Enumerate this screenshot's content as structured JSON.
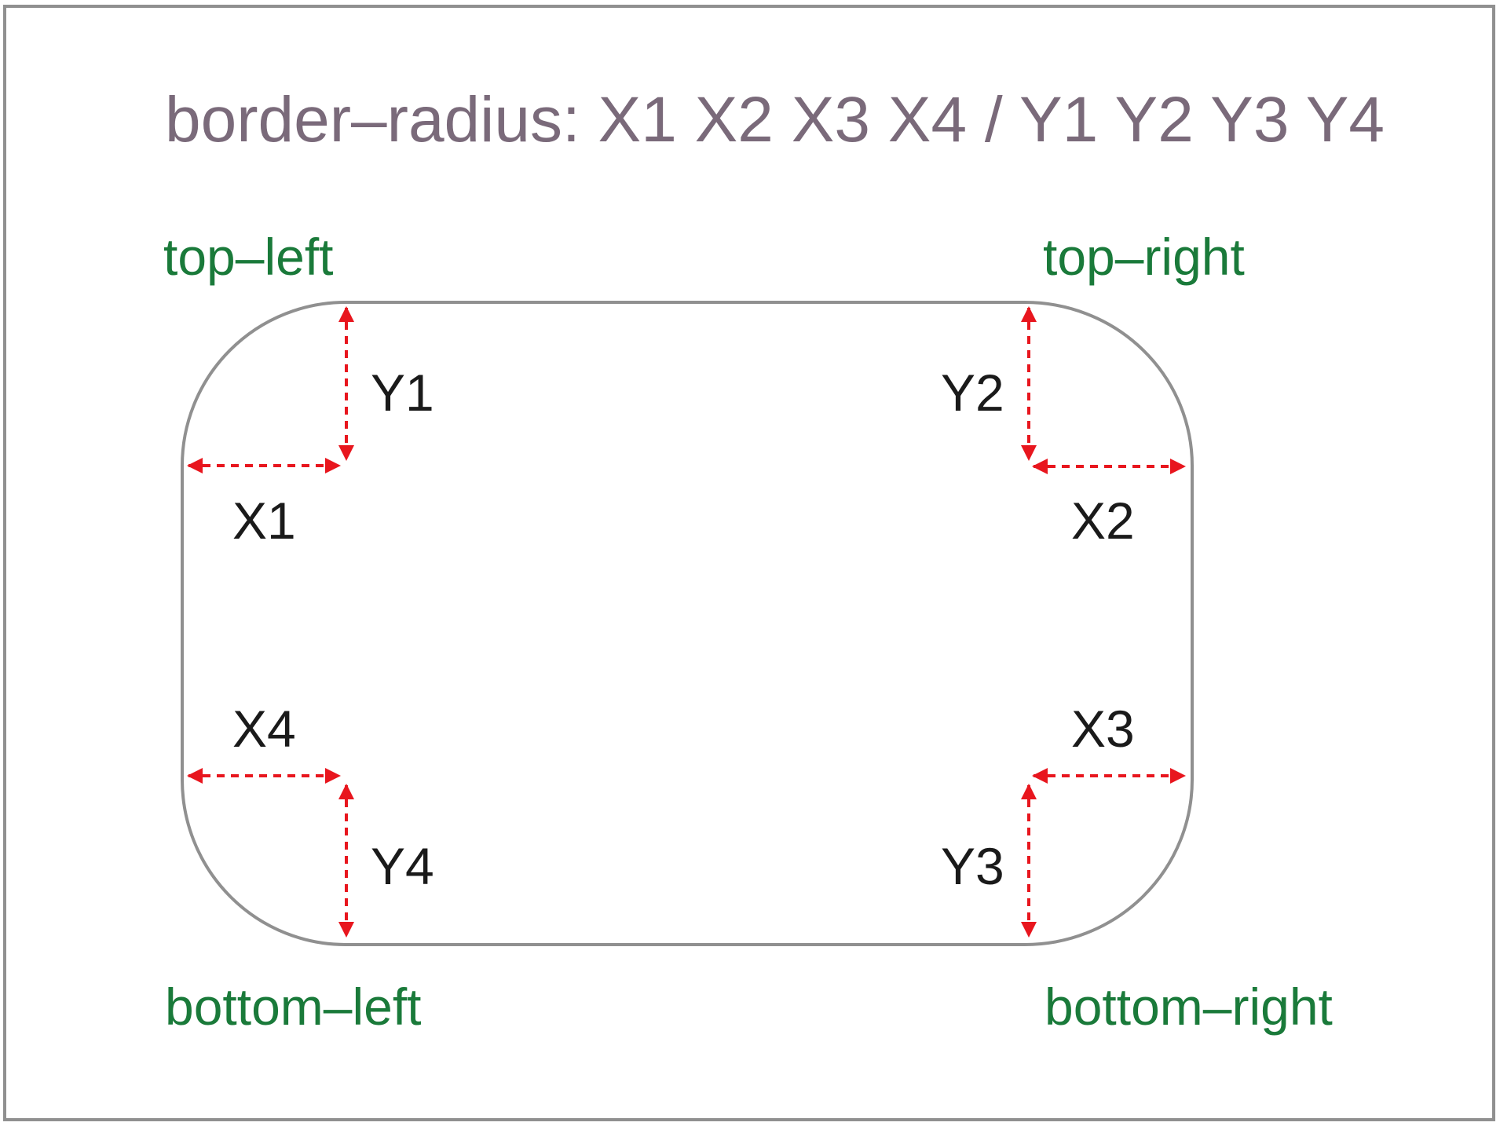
{
  "title": "border–radius: X1 X2 X3 X4 / Y1 Y2 Y3 Y4",
  "corners": {
    "top_left": "top–left",
    "top_right": "top–right",
    "bottom_left": "bottom–left",
    "bottom_right": "bottom–right"
  },
  "dimensions": {
    "x1": "X1",
    "y1": "Y1",
    "x2": "X2",
    "y2": "Y2",
    "x3": "X3",
    "y3": "Y3",
    "x4": "X4",
    "y4": "Y4"
  },
  "colors": {
    "title": "#7a6a7a",
    "corner_labels": "#1a7a3a",
    "dimension_labels": "#1a1a1a",
    "arrows": "#e8161e",
    "box_outline": "#909090",
    "frame": "#909090"
  }
}
